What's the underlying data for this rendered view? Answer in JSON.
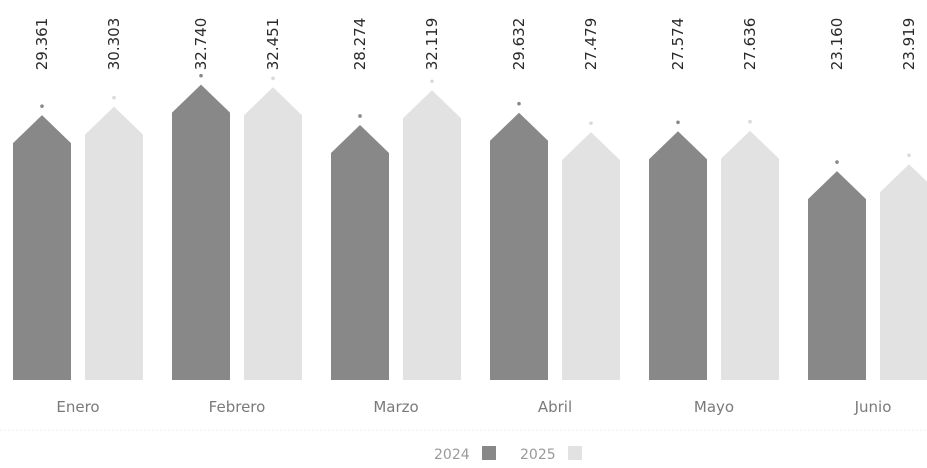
{
  "chart_data": {
    "type": "bar",
    "categories": [
      "Enero",
      "Febrero",
      "Marzo",
      "Abril",
      "Mayo",
      "Junio"
    ],
    "series": [
      {
        "name": "2024",
        "values": [
          29361,
          32740,
          28274,
          29632,
          27574,
          23160
        ],
        "labels": [
          "29.361",
          "32.740",
          "28.274",
          "29.632",
          "27.574",
          "23.160"
        ]
      },
      {
        "name": "2025",
        "values": [
          30303,
          32451,
          32119,
          27479,
          27636,
          23919
        ],
        "labels": [
          "30.303",
          "32.451",
          "32.119",
          "27.479",
          "27.636",
          "23.919"
        ]
      }
    ],
    "grid": false,
    "legend": "bottom-center",
    "colors": {
      "2024": "#888888",
      "2025": "#e2e2e2"
    }
  }
}
